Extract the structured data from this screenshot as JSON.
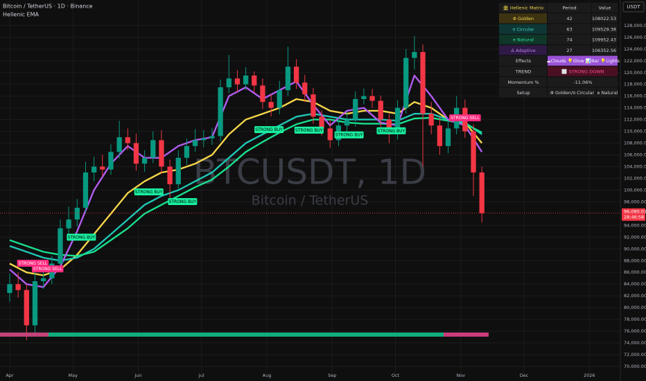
{
  "chart_data": {
    "type": "candlestick",
    "title": "Bitcoin / TetherUS · 1D · Binance",
    "subtitle": "Hellenic EMA",
    "watermark": [
      "BTCUSDT, 1D",
      "Bitcoin / TetherUS"
    ],
    "currency": "USDT",
    "up_color": "#089981",
    "down_color": "#f23645",
    "xlim": [
      -4.6,
      289.7
    ],
    "xticks": [
      {
        "value": 0,
        "label": "Apr"
      },
      {
        "value": 30,
        "label": "May"
      },
      {
        "value": 61,
        "label": "Jun"
      },
      {
        "value": 91,
        "label": "Jul"
      },
      {
        "value": 122,
        "label": "Aug"
      },
      {
        "value": 153,
        "label": "Sep"
      },
      {
        "value": 183,
        "label": "Oct"
      },
      {
        "value": 214,
        "label": "Nov"
      },
      {
        "value": 244,
        "label": "Dec"
      },
      {
        "value": 275,
        "label": "2026"
      }
    ],
    "ylim": [
      68700,
      132350
    ],
    "yticks": [
      {
        "value": 70000,
        "label": "70,000.00"
      },
      {
        "value": 72000,
        "label": "72,000.00"
      },
      {
        "value": 74000,
        "label": "74,000.00"
      },
      {
        "value": 76000,
        "label": "76,000.00"
      },
      {
        "value": 78000,
        "label": "78,000.00"
      },
      {
        "value": 80000,
        "label": "80,000.00"
      },
      {
        "value": 82000,
        "label": "82,000.00"
      },
      {
        "value": 84000,
        "label": "84,000.00"
      },
      {
        "value": 86000,
        "label": "86,000.00"
      },
      {
        "value": 88000,
        "label": "88,000.00"
      },
      {
        "value": 90000,
        "label": "90,000.00"
      },
      {
        "value": 92000,
        "label": "92,000.00"
      },
      {
        "value": 94000,
        "label": "94,000.00"
      },
      {
        "value": 98000,
        "label": "98,000.00"
      },
      {
        "value": 100000,
        "label": "100,000.00"
      },
      {
        "value": 102000,
        "label": "102,000.00"
      },
      {
        "value": 104000,
        "label": "104,000.00"
      },
      {
        "value": 106000,
        "label": "106,000.00"
      },
      {
        "value": 108000,
        "label": "108,000.00"
      },
      {
        "value": 110000,
        "label": "110,000.00"
      },
      {
        "value": 112000,
        "label": "112,000.00"
      },
      {
        "value": 114000,
        "label": "114,000.00"
      },
      {
        "value": 116000,
        "label": "116,000.00"
      },
      {
        "value": 118000,
        "label": "118,000.00"
      },
      {
        "value": 120000,
        "label": "120,000.00"
      },
      {
        "value": 122000,
        "label": "122,000.00"
      },
      {
        "value": 124000,
        "label": "124,000.00"
      },
      {
        "value": 126000,
        "label": "126,000.00"
      },
      {
        "value": 128000,
        "label": "128,000.00"
      }
    ],
    "grid": true,
    "x": [
      0,
      4,
      8,
      12,
      16,
      20,
      24,
      28,
      32,
      36,
      40,
      44,
      48,
      52,
      56,
      60,
      64,
      68,
      72,
      76,
      80,
      84,
      88,
      92,
      96,
      100,
      104,
      108,
      112,
      116,
      120,
      124,
      128,
      132,
      136,
      140,
      144,
      148,
      152,
      156,
      160,
      164,
      168,
      172,
      176,
      180,
      184,
      188,
      192,
      196,
      200,
      204,
      208,
      212,
      216,
      220,
      224
    ],
    "open": [
      82500,
      84000,
      83000,
      77000,
      84500,
      85000,
      87500,
      93500,
      95000,
      97000,
      103000,
      104000,
      103500,
      106500,
      109000,
      108000,
      104500,
      105500,
      108500,
      104000,
      101000,
      105500,
      107500,
      108500,
      108800,
      109200,
      117500,
      119000,
      118000,
      119500,
      117800,
      115000,
      114000,
      117000,
      121000,
      118300,
      116300,
      112500,
      110500,
      108500,
      111000,
      112000,
      115500,
      116000,
      115200,
      112000,
      109500,
      114000,
      122500,
      123500,
      113000,
      111000,
      107500,
      110500,
      114000,
      110000,
      103000
    ],
    "high": [
      85800,
      86000,
      84000,
      86000,
      86800,
      88800,
      95000,
      97200,
      98500,
      104800,
      105700,
      106000,
      107800,
      111800,
      110500,
      109600,
      106800,
      110000,
      110200,
      105200,
      106800,
      108800,
      110400,
      110200,
      110600,
      118800,
      123000,
      120400,
      120900,
      120200,
      119000,
      116300,
      118600,
      124400,
      122300,
      119600,
      117400,
      113600,
      112000,
      112600,
      113300,
      116800,
      117300,
      117200,
      116100,
      113000,
      115300,
      124000,
      126200,
      124800,
      115000,
      112400,
      111800,
      116000,
      115400,
      111200,
      104000
    ],
    "low": [
      81000,
      81700,
      74500,
      75200,
      83200,
      84000,
      86500,
      92400,
      93800,
      96000,
      101500,
      102300,
      102600,
      105400,
      106800,
      103300,
      103100,
      104600,
      102800,
      98300,
      100200,
      104300,
      106500,
      107300,
      107700,
      108300,
      116500,
      116700,
      117000,
      116600,
      113800,
      112500,
      112900,
      116000,
      117200,
      115000,
      111300,
      109300,
      107200,
      107500,
      109900,
      110800,
      114600,
      114000,
      110700,
      108000,
      108600,
      113000,
      120500,
      104000,
      109500,
      106000,
      106300,
      109500,
      108900,
      99000,
      94500
    ],
    "close": [
      84000,
      83000,
      77000,
      84500,
      85000,
      87500,
      93500,
      95000,
      97000,
      103000,
      104000,
      103500,
      106500,
      109000,
      108000,
      104500,
      105500,
      108500,
      104000,
      101000,
      105500,
      107500,
      108500,
      108800,
      109200,
      117500,
      119000,
      118000,
      119500,
      117800,
      115000,
      114000,
      117000,
      121000,
      118300,
      116300,
      112500,
      110500,
      108500,
      111000,
      112000,
      115500,
      116000,
      115200,
      112000,
      109500,
      114000,
      122500,
      123500,
      113000,
      111000,
      107500,
      110500,
      114000,
      110000,
      103000,
      96080
    ],
    "lines": [
      {
        "color": "#f5d54a",
        "x": [
          0,
          8,
          16,
          24,
          32,
          40,
          48,
          56,
          64,
          72,
          80,
          88,
          96,
          104,
          112,
          120,
          128,
          136,
          144,
          152,
          160,
          168,
          176,
          184,
          192,
          200,
          208,
          216,
          224
        ],
        "values": [
          87500,
          86000,
          85500,
          86500,
          89000,
          92500,
          96000,
          99500,
          101500,
          103000,
          103500,
          104500,
          106000,
          109500,
          112000,
          113000,
          114000,
          115500,
          115000,
          113500,
          113000,
          113500,
          113500,
          113000,
          115000,
          114000,
          112000,
          111500,
          108000
        ]
      },
      {
        "color": "#1fc7b5",
        "x": [
          0,
          8,
          16,
          24,
          32,
          40,
          48,
          56,
          64,
          72,
          80,
          88,
          96,
          104,
          112,
          120,
          128,
          136,
          144,
          152,
          160,
          168,
          176,
          184,
          192,
          200,
          208,
          216,
          224
        ],
        "values": [
          90500,
          89500,
          88500,
          88000,
          88500,
          90000,
          92500,
          95000,
          97500,
          99000,
          100000,
          101500,
          103000,
          105500,
          108000,
          109500,
          111000,
          112500,
          113000,
          112500,
          112000,
          112000,
          112000,
          111800,
          113000,
          113000,
          112000,
          111500,
          109500
        ]
      },
      {
        "color": "#18e08e",
        "x": [
          0,
          8,
          16,
          24,
          32,
          40,
          48,
          56,
          64,
          72,
          80,
          88,
          96,
          104,
          112,
          120,
          128,
          136,
          144,
          152,
          160,
          168,
          176,
          184,
          192,
          200,
          208,
          216,
          224
        ],
        "values": [
          91500,
          90500,
          89500,
          89000,
          88800,
          89500,
          91500,
          93500,
          96000,
          97500,
          99000,
          100500,
          101800,
          104000,
          106500,
          108200,
          109800,
          111200,
          112000,
          112000,
          111500,
          111300,
          111300,
          111200,
          112200,
          112300,
          111800,
          111300,
          109800
        ]
      },
      {
        "color": "#b25cf0",
        "x": [
          0,
          8,
          16,
          24,
          32,
          40,
          48,
          56,
          64,
          72,
          80,
          88,
          96,
          104,
          112,
          120,
          128,
          136,
          144,
          152,
          160,
          168,
          176,
          184,
          192,
          200,
          208,
          216,
          224
        ],
        "values": [
          86500,
          84000,
          83500,
          87000,
          93000,
          100000,
          104500,
          107500,
          105500,
          105500,
          107500,
          108500,
          109000,
          116000,
          117500,
          115500,
          117000,
          118500,
          114500,
          111000,
          113500,
          114000,
          111500,
          111000,
          119500,
          116000,
          112000,
          111000,
          106500
        ]
      }
    ],
    "signals": [
      {
        "label": "STRONG SELL",
        "x": 11,
        "y": 87560,
        "color": "#ff2a7f"
      },
      {
        "label": "STRONG SELL",
        "x": 18,
        "y": 86600,
        "color": "#ff2a7f"
      },
      {
        "label": "STRONG BUY",
        "x": 34,
        "y": 92000,
        "color": "#19f0a0"
      },
      {
        "label": "STRONG BUY",
        "x": 66,
        "y": 99700,
        "color": "#19f0a0"
      },
      {
        "label": "STRONG BUY",
        "x": 82,
        "y": 98050,
        "color": "#19f0a0"
      },
      {
        "label": "STRONG BUY",
        "x": 123,
        "y": 110300,
        "color": "#19f0a0"
      },
      {
        "label": "STRONG BUY",
        "x": 142,
        "y": 110200,
        "color": "#19f0a0"
      },
      {
        "label": "STRONG BUY",
        "x": 161,
        "y": 109400,
        "color": "#19f0a0"
      },
      {
        "label": "STRONG BUY",
        "x": 181,
        "y": 110100,
        "color": "#19f0a0"
      },
      {
        "label": "STRONG SELL",
        "x": 216,
        "y": 112300,
        "color": "#ff2a7f"
      }
    ],
    "last_price": {
      "value": 96080.01,
      "label": "96,080.01"
    },
    "countdown": "28:46:58"
  },
  "matrix": {
    "header": [
      "🏛 Hellenic Matrix",
      "Period",
      "Value"
    ],
    "rows": [
      [
        "Φ Golden",
        42,
        108022.53
      ],
      [
        "π Circular",
        63,
        109529.38
      ],
      [
        "e Natural",
        74,
        109952.43
      ],
      [
        "Δ Adaptive",
        27,
        106352.56
      ]
    ],
    "effects": [
      "Effects",
      "☁Clouds 💡Glow 📊Bar 💡Lights"
    ],
    "trend": [
      "TREND",
      "⬜ STRONG DOWN"
    ],
    "momentum": [
      "Momentum %",
      "-11.06%"
    ],
    "setup": [
      "Setup",
      "Φ Golden/π Circular",
      "e Natural"
    ]
  }
}
